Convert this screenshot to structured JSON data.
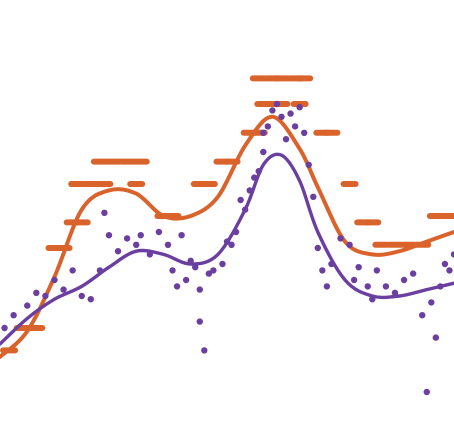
{
  "chart_data": {
    "type": "line",
    "title": "",
    "xlabel": "",
    "ylabel": "",
    "xlim": [
      0,
      100
    ],
    "ylim": [
      0,
      100
    ],
    "grid": false,
    "legend": "none",
    "series": [
      {
        "key": "orange",
        "color": "#D9632B",
        "smooth": {
          "x": [
            0,
            6,
            12,
            18,
            24,
            30,
            36,
            42,
            48,
            54,
            60,
            66,
            70,
            76,
            82,
            88,
            94,
            100
          ],
          "y": [
            6,
            14,
            31,
            52,
            58,
            57,
            50,
            50,
            56,
            72,
            81,
            71,
            59,
            42,
            38,
            39,
            42,
            45
          ]
        },
        "points": [
          {
            "x": 2,
            "y": 8
          },
          {
            "x": 5,
            "y": 15
          },
          {
            "x": 8,
            "y": 15
          },
          {
            "x": 12,
            "y": 40
          },
          {
            "x": 14,
            "y": 40
          },
          {
            "x": 16,
            "y": 48
          },
          {
            "x": 18,
            "y": 48
          },
          {
            "x": 17,
            "y": 60
          },
          {
            "x": 20,
            "y": 60
          },
          {
            "x": 23,
            "y": 60
          },
          {
            "x": 22,
            "y": 67
          },
          {
            "x": 25,
            "y": 67
          },
          {
            "x": 28,
            "y": 67
          },
          {
            "x": 31,
            "y": 67
          },
          {
            "x": 30,
            "y": 60
          },
          {
            "x": 36,
            "y": 50
          },
          {
            "x": 38,
            "y": 50
          },
          {
            "x": 44,
            "y": 60
          },
          {
            "x": 46,
            "y": 60
          },
          {
            "x": 49,
            "y": 67
          },
          {
            "x": 51,
            "y": 67
          },
          {
            "x": 55,
            "y": 76
          },
          {
            "x": 57,
            "y": 76
          },
          {
            "x": 58,
            "y": 85
          },
          {
            "x": 60,
            "y": 85
          },
          {
            "x": 62,
            "y": 85
          },
          {
            "x": 57,
            "y": 93
          },
          {
            "x": 60,
            "y": 93
          },
          {
            "x": 62,
            "y": 93
          },
          {
            "x": 65,
            "y": 93
          },
          {
            "x": 67,
            "y": 93
          },
          {
            "x": 66,
            "y": 85
          },
          {
            "x": 71,
            "y": 76
          },
          {
            "x": 73,
            "y": 76
          },
          {
            "x": 77,
            "y": 60
          },
          {
            "x": 80,
            "y": 48
          },
          {
            "x": 82,
            "y": 48
          },
          {
            "x": 84,
            "y": 41
          },
          {
            "x": 87,
            "y": 41
          },
          {
            "x": 90,
            "y": 41
          },
          {
            "x": 93,
            "y": 41
          },
          {
            "x": 96,
            "y": 50
          },
          {
            "x": 99,
            "y": 50
          }
        ]
      },
      {
        "key": "purple",
        "color": "#6A3FA0",
        "smooth": {
          "x": [
            0,
            6,
            12,
            18,
            24,
            30,
            36,
            42,
            48,
            54,
            58,
            62,
            66,
            70,
            76,
            82,
            88,
            94,
            100
          ],
          "y": [
            10,
            18,
            24,
            28,
            34,
            39,
            38,
            35,
            38,
            52,
            66,
            69,
            61,
            45,
            30,
            25,
            25,
            27,
            29
          ]
        },
        "points": [
          {
            "x": 1,
            "y": 15
          },
          {
            "x": 3,
            "y": 19
          },
          {
            "x": 6,
            "y": 22
          },
          {
            "x": 8,
            "y": 26
          },
          {
            "x": 10,
            "y": 25
          },
          {
            "x": 12,
            "y": 30
          },
          {
            "x": 14,
            "y": 27
          },
          {
            "x": 16,
            "y": 33
          },
          {
            "x": 18,
            "y": 25
          },
          {
            "x": 20,
            "y": 24
          },
          {
            "x": 22,
            "y": 33
          },
          {
            "x": 23,
            "y": 51
          },
          {
            "x": 24,
            "y": 44
          },
          {
            "x": 26,
            "y": 39
          },
          {
            "x": 28,
            "y": 43
          },
          {
            "x": 30,
            "y": 41
          },
          {
            "x": 31,
            "y": 44
          },
          {
            "x": 33,
            "y": 38
          },
          {
            "x": 35,
            "y": 45
          },
          {
            "x": 37,
            "y": 41
          },
          {
            "x": 38,
            "y": 33
          },
          {
            "x": 39,
            "y": 28
          },
          {
            "x": 40,
            "y": 44
          },
          {
            "x": 41,
            "y": 30
          },
          {
            "x": 42,
            "y": 36
          },
          {
            "x": 43,
            "y": 34
          },
          {
            "x": 44,
            "y": 17
          },
          {
            "x": 44,
            "y": 27
          },
          {
            "x": 45,
            "y": 8
          },
          {
            "x": 46,
            "y": 32
          },
          {
            "x": 47,
            "y": 33
          },
          {
            "x": 49,
            "y": 35
          },
          {
            "x": 50,
            "y": 42
          },
          {
            "x": 51,
            "y": 41
          },
          {
            "x": 52,
            "y": 45
          },
          {
            "x": 53,
            "y": 55
          },
          {
            "x": 54,
            "y": 52
          },
          {
            "x": 55,
            "y": 58
          },
          {
            "x": 56,
            "y": 62
          },
          {
            "x": 57,
            "y": 64
          },
          {
            "x": 58,
            "y": 70
          },
          {
            "x": 58,
            "y": 76
          },
          {
            "x": 59,
            "y": 78
          },
          {
            "x": 60,
            "y": 83
          },
          {
            "x": 61,
            "y": 85
          },
          {
            "x": 62,
            "y": 81
          },
          {
            "x": 63,
            "y": 74
          },
          {
            "x": 64,
            "y": 82
          },
          {
            "x": 65,
            "y": 78
          },
          {
            "x": 66,
            "y": 84
          },
          {
            "x": 67,
            "y": 76
          },
          {
            "x": 68,
            "y": 66
          },
          {
            "x": 69,
            "y": 56
          },
          {
            "x": 70,
            "y": 40
          },
          {
            "x": 71,
            "y": 33
          },
          {
            "x": 72,
            "y": 28
          },
          {
            "x": 73,
            "y": 35
          },
          {
            "x": 75,
            "y": 43
          },
          {
            "x": 77,
            "y": 41
          },
          {
            "x": 78,
            "y": 30
          },
          {
            "x": 79,
            "y": 34
          },
          {
            "x": 81,
            "y": 28
          },
          {
            "x": 82,
            "y": 24
          },
          {
            "x": 83,
            "y": 33
          },
          {
            "x": 85,
            "y": 28
          },
          {
            "x": 87,
            "y": 26
          },
          {
            "x": 89,
            "y": 30
          },
          {
            "x": 91,
            "y": 32
          },
          {
            "x": 93,
            "y": 19
          },
          {
            "x": 94,
            "y": -5
          },
          {
            "x": 95,
            "y": 23
          },
          {
            "x": 96,
            "y": 12
          },
          {
            "x": 97,
            "y": 28
          },
          {
            "x": 98,
            "y": 35
          },
          {
            "x": 99,
            "y": 33
          },
          {
            "x": 100,
            "y": 38
          }
        ]
      }
    ]
  }
}
